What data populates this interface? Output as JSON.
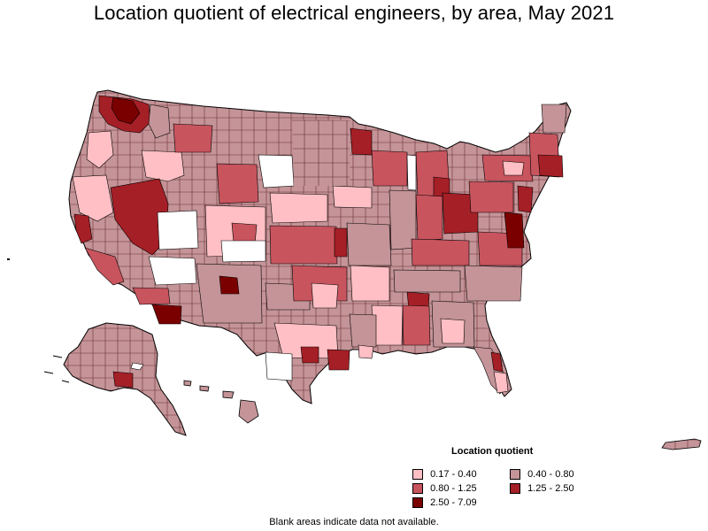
{
  "title": "Location quotient of electrical engineers, by area, May 2021",
  "legend": {
    "title": "Location quotient",
    "items": [
      {
        "label": "0.17 - 0.40",
        "color": "#ffbfc4"
      },
      {
        "label": "0.40 - 0.80",
        "color": "#c49498"
      },
      {
        "label": "0.80 - 1.25",
        "color": "#c8545e"
      },
      {
        "label": "1.25 - 2.50",
        "color": "#a51f26"
      },
      {
        "label": "2.50 - 7.09",
        "color": "#7a0000"
      }
    ]
  },
  "footnote": "Blank areas indicate data not available.",
  "colors": {
    "border": "#000000",
    "no_data": "#ffffff"
  }
}
